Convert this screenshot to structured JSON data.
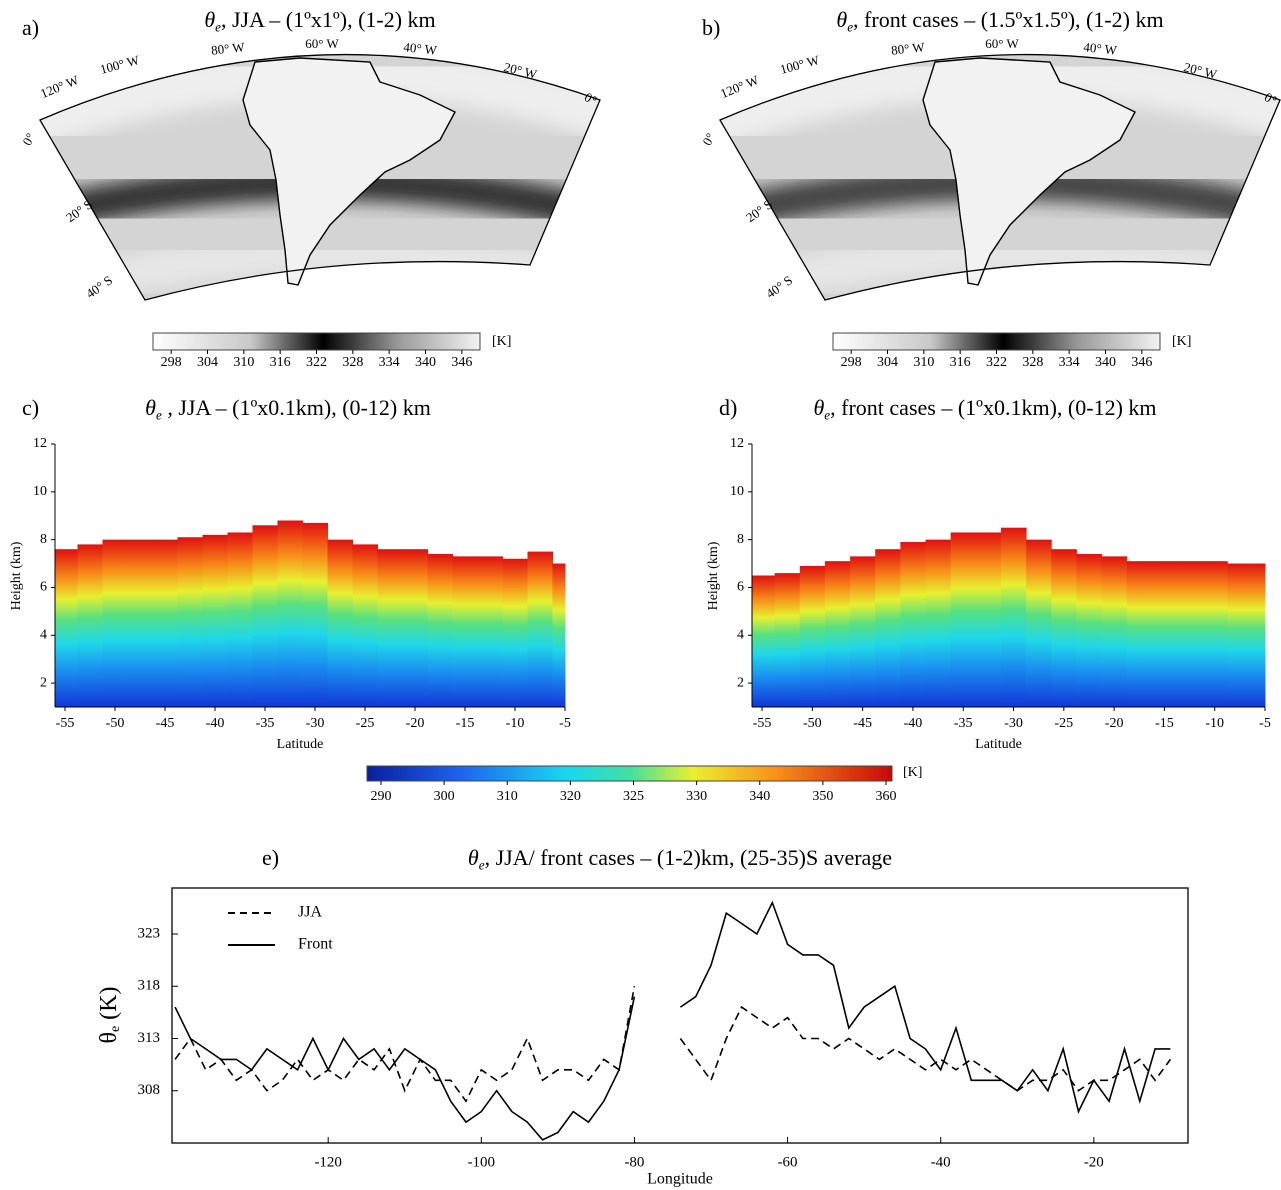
{
  "maps": [
    {
      "label": "a)",
      "title": {
        "symbol": "θ",
        "subscript": "e",
        "text": ", JJA – (1ºx1º), (1-2) km"
      },
      "lon_labels": [
        "120° W",
        "100° W",
        "80° W",
        "60° W",
        "40° W",
        "20° W",
        "0°"
      ],
      "lat_labels": [
        "0°",
        "20° S",
        "40° S"
      ],
      "colorbar": {
        "lim": [
          295,
          349
        ],
        "ticks": [
          298,
          304,
          310,
          316,
          322,
          328,
          334,
          340,
          346
        ],
        "unit": "[K]"
      }
    },
    {
      "label": "b)",
      "title": {
        "symbol": "θ",
        "subscript": "e",
        "text": ", front cases – (1.5ºx1.5º), (1-2) km"
      },
      "lon_labels": [
        "120° W",
        "100° W",
        "80° W",
        "60° W",
        "40° W",
        "20° W",
        "0°"
      ],
      "lat_labels": [
        "0°",
        "20° S",
        "40° S"
      ],
      "colorbar": {
        "lim": [
          295,
          349
        ],
        "ticks": [
          298,
          304,
          310,
          316,
          322,
          328,
          334,
          340,
          346
        ],
        "unit": "[K]"
      }
    }
  ],
  "chart_data": [
    {
      "type": "field",
      "label": "c)",
      "title": {
        "symbol": "θ",
        "subscript": "e",
        "text": " , JJA – (1ºx0.1km), (0-12) km"
      },
      "xlabel": "Latitude",
      "ylabel": "Height (km)",
      "x": [
        -55,
        -52.5,
        -50,
        -47.5,
        -45,
        -42.5,
        -40,
        -37.5,
        -35,
        -32.5,
        -30,
        -27.5,
        -25,
        -22.5,
        -20,
        -17.5,
        -15,
        -12.5,
        -10,
        -7.5,
        -5
      ],
      "values": [
        7.6,
        7.8,
        8.0,
        8.0,
        8.0,
        8.1,
        8.2,
        8.3,
        8.6,
        8.8,
        8.7,
        8.0,
        7.8,
        7.6,
        7.6,
        7.4,
        7.3,
        7.3,
        7.2,
        7.5,
        7.0
      ],
      "xlim": [
        -56,
        -5
      ],
      "ylim": [
        1,
        12
      ],
      "xticks": [
        -55,
        -50,
        -45,
        -40,
        -35,
        -30,
        -25,
        -20,
        -15,
        -10,
        -5
      ],
      "yticks": [
        2,
        4,
        6,
        8,
        10,
        12
      ]
    },
    {
      "type": "field",
      "label": "d)",
      "title": {
        "symbol": "θ",
        "subscript": "e",
        "text": ", front cases – (1ºx0.1km), (0-12) km"
      },
      "xlabel": "Latitude",
      "ylabel": "Height (km)",
      "x": [
        -55,
        -52.5,
        -50,
        -47.5,
        -45,
        -42.5,
        -40,
        -37.5,
        -35,
        -32.5,
        -30,
        -27.5,
        -25,
        -22.5,
        -20,
        -17.5,
        -15,
        -12.5,
        -10,
        -7.5,
        -5
      ],
      "values": [
        6.5,
        6.6,
        6.9,
        7.1,
        7.3,
        7.6,
        7.9,
        8.0,
        8.3,
        8.3,
        8.5,
        8.0,
        7.6,
        7.4,
        7.3,
        7.1,
        7.1,
        7.1,
        7.1,
        7.0,
        7.0
      ],
      "xlim": [
        -56,
        -5
      ],
      "ylim": [
        1,
        12
      ],
      "xticks": [
        -55,
        -50,
        -45,
        -40,
        -35,
        -30,
        -25,
        -20,
        -15,
        -10,
        -5
      ],
      "yticks": [
        2,
        4,
        6,
        8,
        10,
        12
      ]
    },
    {
      "type": "line",
      "label": "e)",
      "title": {
        "symbol": "θ",
        "subscript": "e",
        "text": ", JJA/ front cases – (1-2)km, (25-35)S average"
      },
      "xlabel": "Longitude",
      "ylabel": {
        "symbol": "θ",
        "subscript": "e",
        "text": " (K)"
      },
      "x": [
        -140,
        -138,
        -136,
        -134,
        -132,
        -130,
        -128,
        -126,
        -124,
        -122,
        -120,
        -118,
        -116,
        -114,
        -112,
        -110,
        -108,
        -106,
        -104,
        -102,
        -100,
        -98,
        -96,
        -94,
        -92,
        -90,
        -88,
        -86,
        -84,
        -82,
        -80,
        -77,
        -74,
        -72,
        -70,
        -68,
        -66,
        -64,
        -62,
        -60,
        -58,
        -56,
        -54,
        -52,
        -50,
        -48,
        -46,
        -44,
        -42,
        -40,
        -38,
        -36,
        -34,
        -32,
        -30,
        -28,
        -26,
        -24,
        -22,
        -20,
        -18,
        -16,
        -14,
        -12,
        -10
      ],
      "series": [
        {
          "name": "JJA",
          "color": "#000000",
          "dash": "8 5",
          "values": [
            311,
            313,
            310,
            311,
            309,
            310,
            308,
            309,
            311,
            309,
            310,
            309,
            311,
            310,
            312,
            308,
            311,
            309,
            309,
            307,
            310,
            309,
            310,
            313,
            309,
            310,
            310,
            309,
            311,
            310,
            318,
            null,
            313,
            311,
            309,
            313,
            316,
            315,
            314,
            315,
            313,
            313,
            312,
            313,
            312,
            311,
            312,
            311,
            310,
            311,
            310,
            311,
            310,
            309,
            308,
            309,
            309,
            310,
            308,
            309,
            309,
            310,
            311,
            309,
            311
          ]
        },
        {
          "name": "Front",
          "color": "#000000",
          "values": [
            316,
            313,
            312,
            311,
            311,
            310,
            312,
            311,
            310,
            313,
            310,
            313,
            311,
            312,
            310,
            312,
            311,
            310,
            307,
            305,
            306,
            308,
            306,
            305,
            303.3,
            304,
            306,
            305,
            307,
            310,
            317,
            null,
            316,
            317,
            320,
            325,
            324,
            323,
            326,
            322,
            321,
            321,
            320,
            314,
            316,
            317,
            318,
            313,
            312,
            310,
            314,
            309,
            309,
            309,
            308,
            310,
            308,
            312,
            306,
            309,
            307,
            312,
            307,
            312,
            312
          ]
        }
      ],
      "xlim": [
        -140.4,
        -7.7
      ],
      "ylim": [
        303,
        327.4
      ],
      "xticks": [
        -120,
        -100,
        -80,
        -60,
        -40,
        -20
      ],
      "yticks": [
        308,
        313,
        318,
        323
      ]
    }
  ],
  "colorbar": {
    "ticks": [
      290,
      300,
      310,
      320,
      325,
      330,
      340,
      350,
      360
    ],
    "unit": "[K]"
  }
}
